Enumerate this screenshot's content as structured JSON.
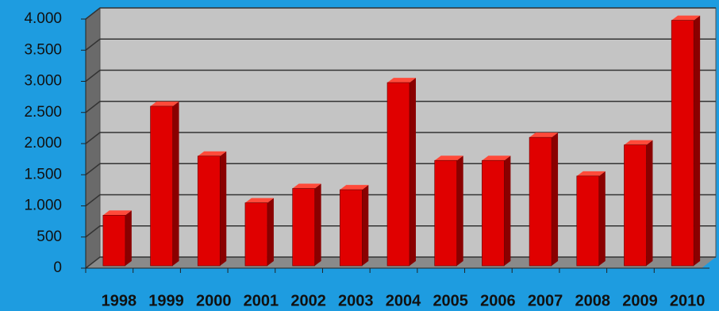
{
  "chart_data": {
    "type": "bar",
    "categories": [
      "1998",
      "1999",
      "2000",
      "2001",
      "2002",
      "2003",
      "2004",
      "2005",
      "2006",
      "2007",
      "2008",
      "2009",
      "2010"
    ],
    "values": [
      850,
      2600,
      1800,
      1050,
      1280,
      1260,
      2980,
      1730,
      1730,
      2100,
      1480,
      1980,
      3980
    ],
    "color": "#e00000",
    "ylim": [
      0,
      4000
    ],
    "yticks": [
      0,
      500,
      {
        "value": 1000,
        "label": "1.000"
      },
      {
        "value": 1500,
        "label": "1.500"
      },
      {
        "value": 2000,
        "label": "2.000"
      },
      {
        "value": 2500,
        "label": "2.500"
      },
      {
        "value": 3000,
        "label": "3.000"
      },
      {
        "value": 3500,
        "label": "3.500"
      },
      {
        "value": 4000,
        "label": "4.000"
      }
    ],
    "grid": true
  }
}
